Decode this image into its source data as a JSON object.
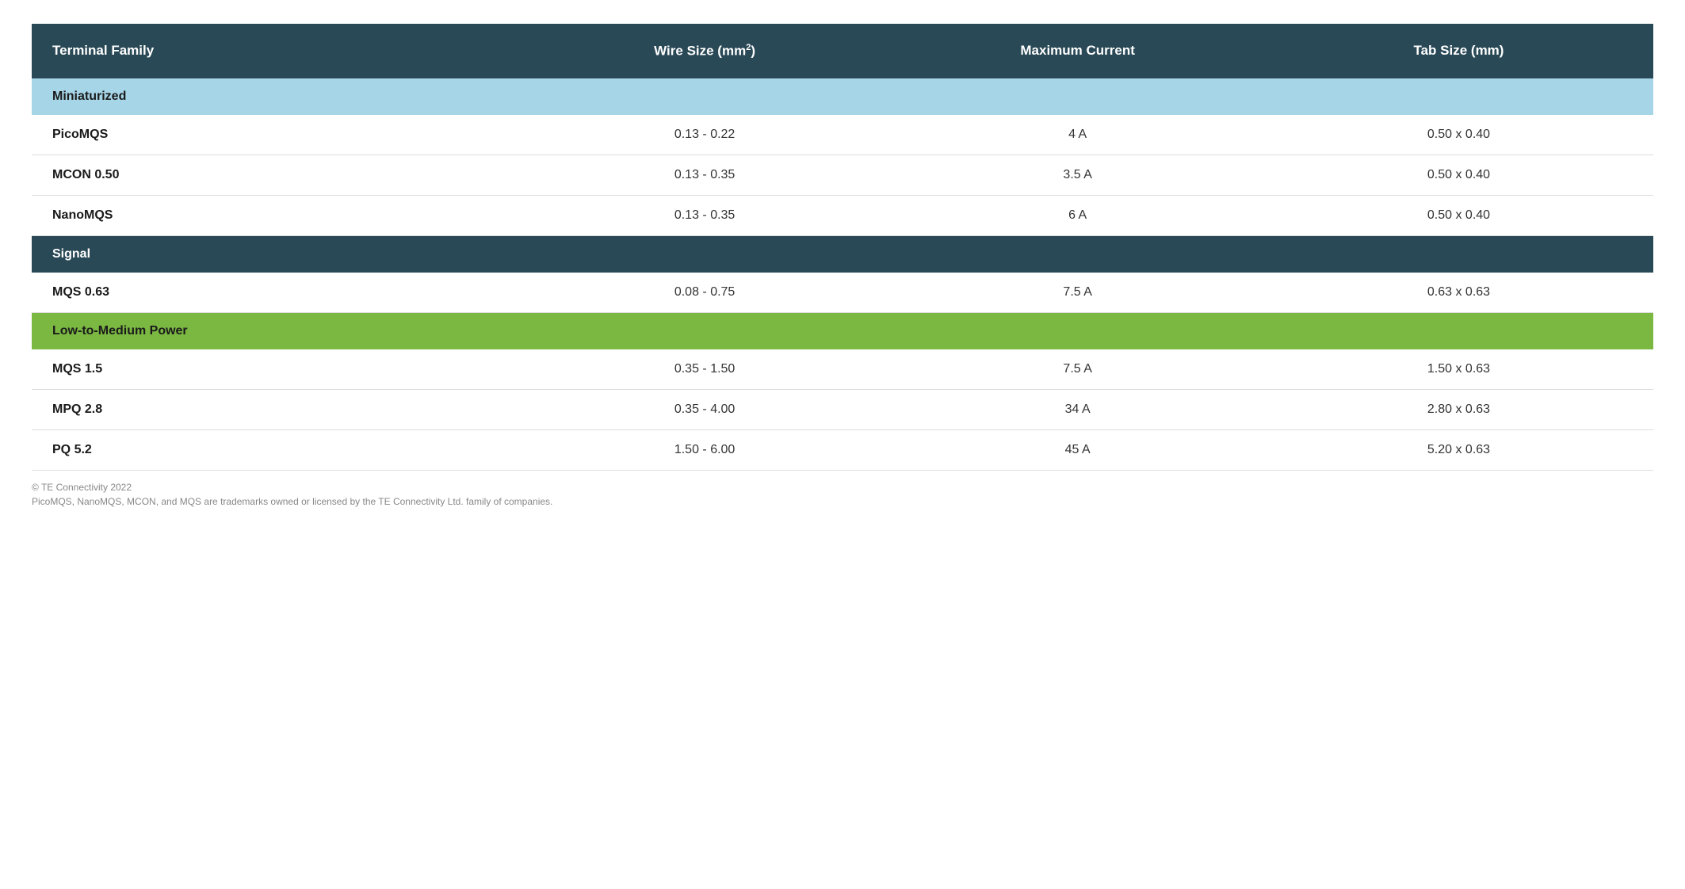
{
  "colors": {
    "header_bg": "#2a4956",
    "header_text": "#ffffff",
    "section_miniaturized_bg": "#a6d5e8",
    "section_miniaturized_text": "#1a1a1a",
    "section_signal_bg": "#2a4956",
    "section_signal_text": "#ffffff",
    "section_low_medium_bg": "#7bb842",
    "section_low_medium_text": "#1a1a1a",
    "row_text": "#333333",
    "row_border": "#dddddd",
    "footer_text": "#888888",
    "page_bg": "#ffffff"
  },
  "typography": {
    "header_fontsize": 17,
    "header_fontweight": 700,
    "section_fontsize": 16,
    "section_fontweight": 700,
    "data_fontsize": 16,
    "data_name_fontweight": 700,
    "footer_fontsize": 12
  },
  "columns": [
    {
      "label": "Terminal Family",
      "width": "30%",
      "align": "left"
    },
    {
      "label_html": "Wire Size (mm²)",
      "label": "Wire Size (mm",
      "sup": "2",
      "label_suffix": ")",
      "width": "23%",
      "align": "center"
    },
    {
      "label": "Maximum Current",
      "width": "23%",
      "align": "center"
    },
    {
      "label": "Tab Size (mm)",
      "width": "24%",
      "align": "center"
    }
  ],
  "sections": [
    {
      "title": "Miniaturized",
      "style_class": "section-miniaturized",
      "rows": [
        {
          "name": "PicoMQS",
          "wire_size": "0.13 - 0.22",
          "max_current": "4 A",
          "tab_size": "0.50 x 0.40"
        },
        {
          "name": "MCON 0.50",
          "wire_size": "0.13 - 0.35",
          "max_current": "3.5 A",
          "tab_size": "0.50 x 0.40"
        },
        {
          "name": "NanoMQS",
          "wire_size": "0.13 - 0.35",
          "max_current": "6 A",
          "tab_size": "0.50 x 0.40"
        }
      ]
    },
    {
      "title": "Signal",
      "style_class": "section-signal",
      "rows": [
        {
          "name": "MQS 0.63",
          "wire_size": "0.08 - 0.75",
          "max_current": "7.5 A",
          "tab_size": "0.63 x 0.63"
        }
      ]
    },
    {
      "title": "Low-to-Medium Power",
      "style_class": "section-low-medium",
      "rows": [
        {
          "name": "MQS 1.5",
          "wire_size": "0.35 - 1.50",
          "max_current": "7.5 A",
          "tab_size": "1.50 x 0.63"
        },
        {
          "name": "MPQ 2.8",
          "wire_size": "0.35 - 4.00",
          "max_current": "34 A",
          "tab_size": "2.80 x 0.63"
        },
        {
          "name": "PQ 5.2",
          "wire_size": "1.50 - 6.00",
          "max_current": "45 A",
          "tab_size": "5.20 x 0.63"
        }
      ]
    }
  ],
  "footer": {
    "line1": "© TE Connectivity 2022",
    "line2": "PicoMQS, NanoMQS, MCON, and MQS are trademarks owned or licensed by the TE Connectivity Ltd. family of companies."
  }
}
